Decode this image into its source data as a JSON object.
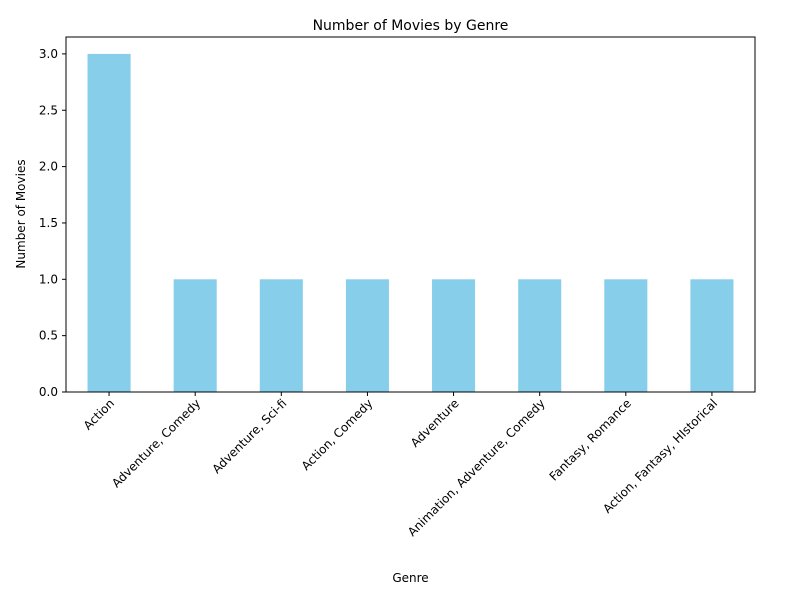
{
  "chart_data": {
    "type": "bar",
    "title": "Number of Movies by Genre",
    "xlabel": "Genre",
    "ylabel": "Number of Movies",
    "categories": [
      "Action",
      "Adventure, Comedy",
      "Adventure, Sci-fi",
      "Action, Comedy",
      "Adventure",
      "Animation, Adventure, Comedy",
      "Fantasy, Romance",
      "Action, Fantasy, HIstorical"
    ],
    "values": [
      3,
      1,
      1,
      1,
      1,
      1,
      1,
      1
    ],
    "ylim": [
      0,
      3.15
    ],
    "yticks": [
      0.0,
      0.5,
      1.0,
      1.5,
      2.0,
      2.5,
      3.0
    ],
    "ytick_labels": [
      "0.0",
      "0.5",
      "1.0",
      "1.5",
      "2.0",
      "2.5",
      "3.0"
    ],
    "bar_color": "#87ceeb",
    "grid": false,
    "legend": false,
    "xtick_rotation": 45
  }
}
